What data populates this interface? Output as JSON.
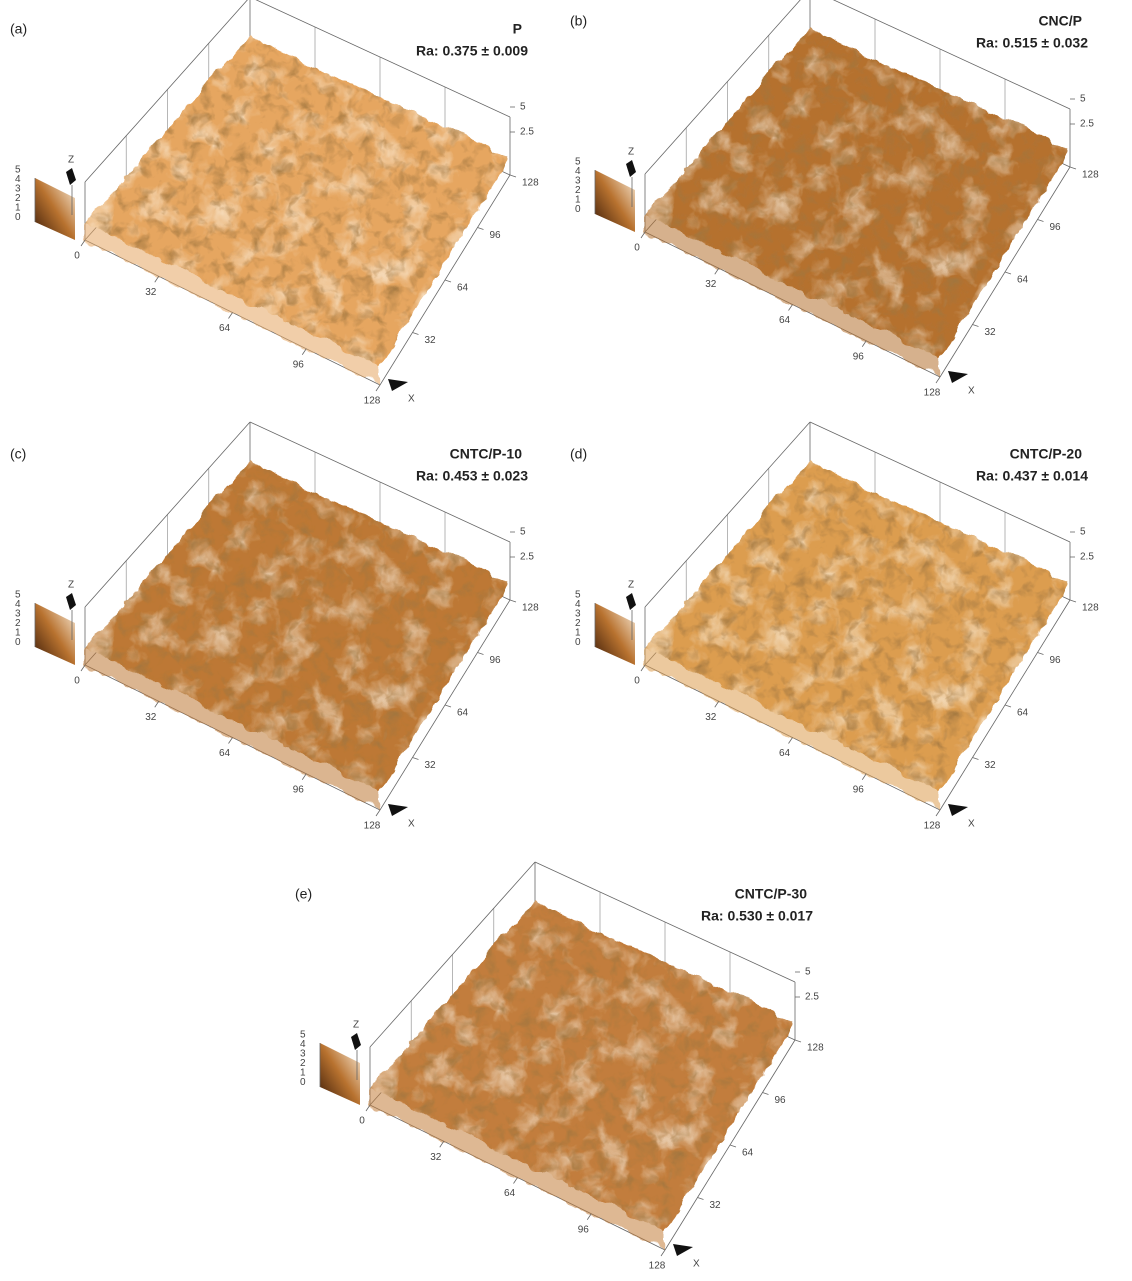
{
  "panels": [
    {
      "label": "(a)",
      "title": "P",
      "ra": "Ra: 0.375 ± 0.009",
      "color": "#e6a660",
      "x_ticks": [
        0,
        32,
        64,
        96,
        128
      ],
      "y_ticks": [
        32,
        64,
        96,
        128
      ],
      "z_ticks": [
        2.5,
        5
      ],
      "colorbar_ticks": [
        5,
        4,
        3,
        2,
        1,
        0
      ],
      "x_axis": "X",
      "z_axis": "Z"
    },
    {
      "label": "(b)",
      "title": "CNC/P",
      "ra": "Ra: 0.515 ± 0.032",
      "color": "#b5712e",
      "x_ticks": [
        0,
        32,
        64,
        96,
        128
      ],
      "y_ticks": [
        32,
        64,
        96,
        128
      ],
      "z_ticks": [
        2.5,
        5
      ],
      "colorbar_ticks": [
        5,
        4,
        3,
        2,
        1,
        0
      ],
      "x_axis": "X",
      "z_axis": "Z"
    },
    {
      "label": "(c)",
      "title": "CNTC/P-10",
      "ra": "Ra: 0.453 ± 0.023",
      "color": "#bd7834",
      "x_ticks": [
        0,
        32,
        64,
        96,
        128
      ],
      "y_ticks": [
        32,
        64,
        96,
        128
      ],
      "z_ticks": [
        2.5,
        5
      ],
      "colorbar_ticks": [
        5,
        4,
        3,
        2,
        1,
        0
      ],
      "x_axis": "X",
      "z_axis": "Z"
    },
    {
      "label": "(d)",
      "title": "CNTC/P-20",
      "ra": "Ra: 0.437 ± 0.014",
      "color": "#dc9d50",
      "x_ticks": [
        0,
        32,
        64,
        96,
        128
      ],
      "y_ticks": [
        32,
        64,
        96,
        128
      ],
      "z_ticks": [
        2.5,
        5
      ],
      "colorbar_ticks": [
        5,
        4,
        3,
        2,
        1,
        0
      ],
      "x_axis": "X",
      "z_axis": "Z"
    },
    {
      "label": "(e)",
      "title": "CNTC/P-30",
      "ra": "Ra: 0.530 ± 0.017",
      "color": "#c27d3c",
      "x_ticks": [
        0,
        32,
        64,
        96,
        128
      ],
      "y_ticks": [
        32,
        64,
        96,
        128
      ],
      "z_ticks": [
        2.5,
        5
      ],
      "colorbar_ticks": [
        5,
        4,
        3,
        2,
        1,
        0
      ],
      "x_axis": "X",
      "z_axis": "Z"
    }
  ]
}
